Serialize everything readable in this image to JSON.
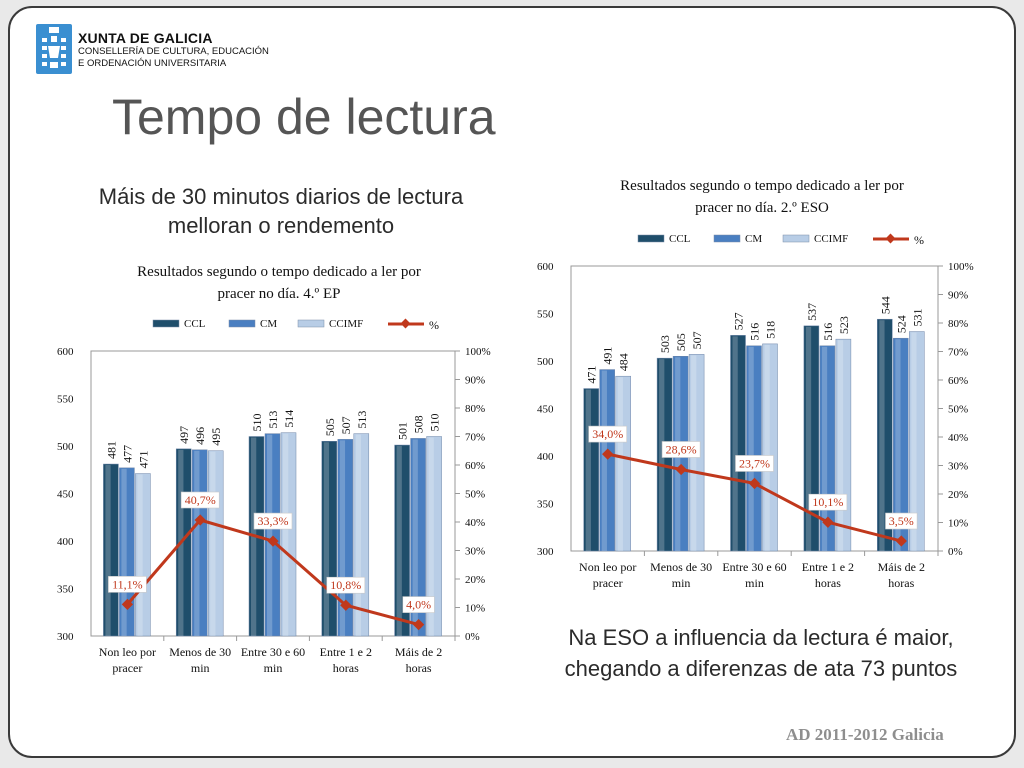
{
  "header": {
    "org_name": "XUNTA DE GALICIA",
    "org_line1": "CONSELLERÍA DE CULTURA, EDUCACIÓN",
    "org_line2": "E ORDENACIÓN UNIVERSITARIA",
    "logo_icon": "galicia-coat-of-arms-icon"
  },
  "title": "Tempo de lectura",
  "subtitle_left_1": "Máis de 30 minutos diarios de lectura",
  "subtitle_left_2": "melloran o rendemento",
  "subtitle_right_1": "Na ESO a influencia da lectura é maior,",
  "subtitle_right_2": "chegando a diferenzas de ata 73 puntos",
  "footer": "AD 2011-2012 Galicia",
  "colors": {
    "ccl": "#1f4e6b",
    "cm": "#4a7fc1",
    "ccimf": "#b8cde6",
    "pct": "#c0381c"
  },
  "chart_data": [
    {
      "type": "bar",
      "title_1": "Resultados segundo o tempo dedicado a ler por",
      "title_2": "pracer no día. 4.º EP",
      "categories": [
        [
          "Non leo por",
          "pracer"
        ],
        [
          "Menos de 30",
          "min"
        ],
        [
          "Entre 30 e 60",
          "min"
        ],
        [
          "Entre 1 e 2",
          "horas"
        ],
        [
          "Máis de 2",
          "horas"
        ]
      ],
      "legend": [
        "CCL",
        "CM",
        "CCIMF",
        "%"
      ],
      "series": [
        {
          "name": "CCL",
          "values": [
            481,
            497,
            510,
            505,
            501
          ]
        },
        {
          "name": "CM",
          "values": [
            477,
            496,
            513,
            507,
            508
          ]
        },
        {
          "name": "CCIMF",
          "values": [
            471,
            495,
            514,
            513,
            510
          ]
        }
      ],
      "line": {
        "name": "%",
        "values": [
          11.1,
          40.7,
          33.3,
          10.8,
          4.0
        ],
        "labels": [
          "11,1%",
          "40,7%",
          "33,3%",
          "10,8%",
          "4,0%"
        ]
      },
      "ylim": [
        300,
        600
      ],
      "y_ticks": [
        "300",
        "350",
        "400",
        "450",
        "500",
        "550",
        "600"
      ],
      "y2lim": [
        0,
        100
      ],
      "y2_ticks": [
        "0%",
        "10%",
        "20%",
        "30%",
        "40%",
        "50%",
        "60%",
        "70%",
        "80%",
        "90%",
        "100%"
      ]
    },
    {
      "type": "bar",
      "title_1": "Resultados segundo o tempo dedicado a ler por",
      "title_2": "pracer no día. 2.º ESO",
      "categories": [
        [
          "Non leo por",
          "pracer"
        ],
        [
          "Menos de 30",
          "min"
        ],
        [
          "Entre 30 e 60",
          "min"
        ],
        [
          "Entre 1 e 2",
          "horas"
        ],
        [
          "Máis de 2",
          "horas"
        ]
      ],
      "legend": [
        "CCL",
        "CM",
        "CCIMF",
        "%"
      ],
      "series": [
        {
          "name": "CCL",
          "values": [
            471,
            503,
            527,
            537,
            544
          ]
        },
        {
          "name": "CM",
          "values": [
            491,
            505,
            516,
            516,
            524
          ]
        },
        {
          "name": "CCIMF",
          "values": [
            484,
            507,
            518,
            523,
            531
          ]
        }
      ],
      "line": {
        "name": "%",
        "values": [
          34.0,
          28.6,
          23.7,
          10.1,
          3.5
        ],
        "labels": [
          "34,0%",
          "28,6%",
          "23,7%",
          "10,1%",
          "3,5%"
        ]
      },
      "ylim": [
        300,
        600
      ],
      "y_ticks": [
        "300",
        "350",
        "400",
        "450",
        "500",
        "550",
        "600"
      ],
      "y2lim": [
        0,
        100
      ],
      "y2_ticks": [
        "0%",
        "10%",
        "20%",
        "30%",
        "40%",
        "50%",
        "60%",
        "70%",
        "80%",
        "90%",
        "100%"
      ]
    }
  ]
}
